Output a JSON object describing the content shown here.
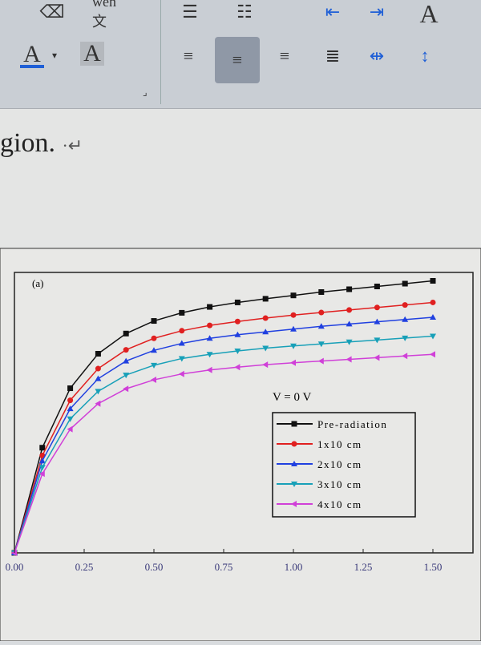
{
  "ribbon": {
    "font_group": [
      {
        "icon": "clear-formatting-icon"
      },
      {
        "icon": "phonetic-guide-icon",
        "label": "wén 文"
      },
      {
        "icon": "font-color-icon",
        "label": "A"
      },
      {
        "icon": "character-shading-icon",
        "label": "A"
      }
    ],
    "paragraph_group": [
      {
        "icon": "bullets-icon"
      },
      {
        "icon": "numbering-icon"
      },
      {
        "icon": "decrease-indent-icon"
      },
      {
        "icon": "increase-indent-icon"
      },
      {
        "icon": "change-case-icon",
        "label": "A"
      },
      {
        "icon": "align-left-icon"
      },
      {
        "icon": "align-center-icon",
        "active": true
      },
      {
        "icon": "align-right-icon"
      },
      {
        "icon": "justify-icon"
      },
      {
        "icon": "distributed-icon"
      },
      {
        "icon": "line-spacing-icon"
      }
    ],
    "accent_active": "#8f98a6",
    "font_color": "#1f5fd6"
  },
  "document": {
    "text": "gion. ",
    "paragraph_mark": "·↵"
  },
  "chart_data": {
    "type": "line",
    "panel_label": "(a)",
    "annotation": "V   = 0 V",
    "x": [
      0,
      0.1,
      0.2,
      0.3,
      0.4,
      0.5,
      0.6,
      0.7,
      0.8,
      0.9,
      1.0,
      1.1,
      1.2,
      1.3,
      1.4,
      1.5
    ],
    "xlim": [
      0,
      1.5
    ],
    "ylim": [
      0,
      1
    ],
    "xticks": [
      "0.00",
      "0.25",
      "0.50",
      "0.75",
      "1.00",
      "1.25",
      "1.50"
    ],
    "xlabel": "",
    "ylabel": "",
    "legend_position": "center-right",
    "grid": false,
    "series": [
      {
        "name": "Pre-radiation",
        "color": "#111111",
        "marker": "square",
        "values": [
          0,
          0.375,
          0.587,
          0.71,
          0.782,
          0.827,
          0.856,
          0.877,
          0.893,
          0.906,
          0.918,
          0.93,
          0.94,
          0.95,
          0.96,
          0.97
        ]
      },
      {
        "name": "1x10   cm",
        "color": "#e02020",
        "marker": "circle",
        "values": [
          0,
          0.347,
          0.544,
          0.657,
          0.724,
          0.765,
          0.792,
          0.811,
          0.825,
          0.837,
          0.848,
          0.857,
          0.866,
          0.875,
          0.884,
          0.893
        ]
      },
      {
        "name": "2x10   cm",
        "color": "#2040e0",
        "marker": "triangle-up",
        "values": [
          0,
          0.328,
          0.514,
          0.621,
          0.684,
          0.722,
          0.747,
          0.765,
          0.778,
          0.788,
          0.798,
          0.808,
          0.816,
          0.824,
          0.832,
          0.84
        ]
      },
      {
        "name": "3x10   cm",
        "color": "#18a0b8",
        "marker": "triangle-down",
        "values": [
          0,
          0.305,
          0.478,
          0.576,
          0.634,
          0.669,
          0.693,
          0.708,
          0.72,
          0.73,
          0.738,
          0.745,
          0.752,
          0.759,
          0.766,
          0.773
        ]
      },
      {
        "name": "4x10   cm",
        "color": "#d040d8",
        "marker": "triangle-left",
        "values": [
          0,
          0.282,
          0.441,
          0.532,
          0.585,
          0.617,
          0.638,
          0.652,
          0.662,
          0.671,
          0.678,
          0.684,
          0.69,
          0.696,
          0.702,
          0.708
        ]
      }
    ]
  }
}
